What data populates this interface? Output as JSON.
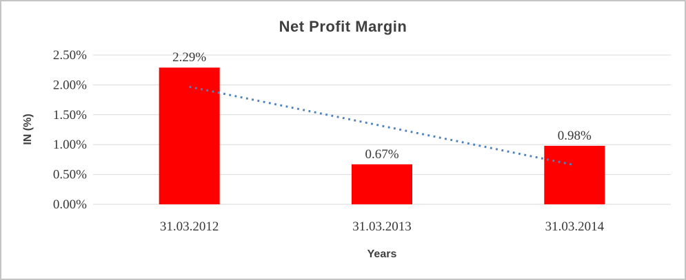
{
  "window": {
    "background_color": "#ffffff",
    "frame_border_color": "#c4c4c4"
  },
  "chart_data": {
    "type": "bar",
    "title": "Net Profit Margin",
    "xlabel": "Years",
    "ylabel": "IN (%)",
    "categories": [
      "31.03.2012",
      "31.03.2013",
      "31.03.2014"
    ],
    "values": [
      2.29,
      0.67,
      0.98
    ],
    "data_labels": [
      "2.29%",
      "0.67%",
      "0.98%"
    ],
    "ytick_labels": [
      "0.00%",
      "0.50%",
      "1.00%",
      "1.50%",
      "2.00%",
      "2.50%"
    ],
    "ytick_values": [
      0,
      0.5,
      1.0,
      1.5,
      2.0,
      2.5
    ],
    "ylim": [
      0,
      2.5
    ],
    "grid": true,
    "legend": "none",
    "bar_color": "#fe0000",
    "gridline_color": "#d9d9d9",
    "title_color": "#3f3f3f",
    "tick_text_color": "#363636",
    "trendline": {
      "type": "linear",
      "style": "dotted",
      "color": "#4e81bd",
      "start_value": 1.97,
      "end_value": 0.66
    }
  }
}
